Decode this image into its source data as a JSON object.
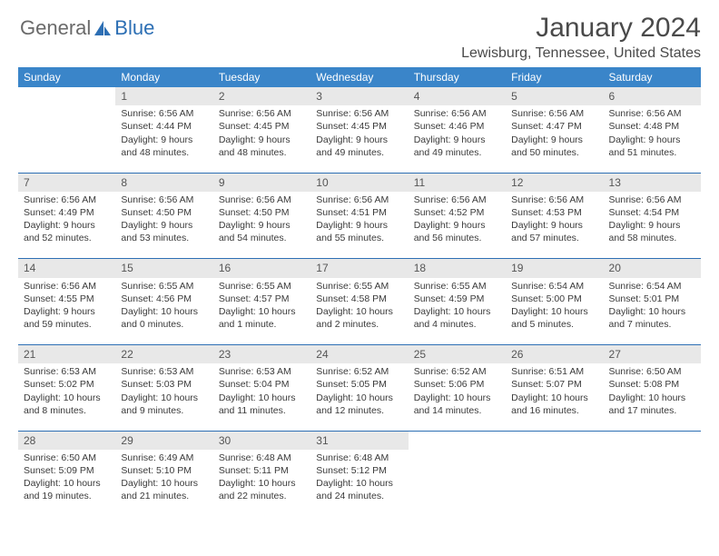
{
  "brand": {
    "part1": "General",
    "part2": "Blue"
  },
  "title": "January 2024",
  "location": "Lewisburg, Tennessee, United States",
  "colors": {
    "header_bg": "#3a85c9",
    "header_fg": "#ffffff",
    "daynum_bg": "#e8e8e8",
    "rule": "#2d6fb4",
    "text": "#3a3a3a"
  },
  "weekdays": [
    "Sunday",
    "Monday",
    "Tuesday",
    "Wednesday",
    "Thursday",
    "Friday",
    "Saturday"
  ],
  "weeks": [
    [
      {
        "n": "",
        "sunrise": "",
        "sunset": "",
        "daylight": ""
      },
      {
        "n": "1",
        "sunrise": "Sunrise: 6:56 AM",
        "sunset": "Sunset: 4:44 PM",
        "daylight": "Daylight: 9 hours and 48 minutes."
      },
      {
        "n": "2",
        "sunrise": "Sunrise: 6:56 AM",
        "sunset": "Sunset: 4:45 PM",
        "daylight": "Daylight: 9 hours and 48 minutes."
      },
      {
        "n": "3",
        "sunrise": "Sunrise: 6:56 AM",
        "sunset": "Sunset: 4:45 PM",
        "daylight": "Daylight: 9 hours and 49 minutes."
      },
      {
        "n": "4",
        "sunrise": "Sunrise: 6:56 AM",
        "sunset": "Sunset: 4:46 PM",
        "daylight": "Daylight: 9 hours and 49 minutes."
      },
      {
        "n": "5",
        "sunrise": "Sunrise: 6:56 AM",
        "sunset": "Sunset: 4:47 PM",
        "daylight": "Daylight: 9 hours and 50 minutes."
      },
      {
        "n": "6",
        "sunrise": "Sunrise: 6:56 AM",
        "sunset": "Sunset: 4:48 PM",
        "daylight": "Daylight: 9 hours and 51 minutes."
      }
    ],
    [
      {
        "n": "7",
        "sunrise": "Sunrise: 6:56 AM",
        "sunset": "Sunset: 4:49 PM",
        "daylight": "Daylight: 9 hours and 52 minutes."
      },
      {
        "n": "8",
        "sunrise": "Sunrise: 6:56 AM",
        "sunset": "Sunset: 4:50 PM",
        "daylight": "Daylight: 9 hours and 53 minutes."
      },
      {
        "n": "9",
        "sunrise": "Sunrise: 6:56 AM",
        "sunset": "Sunset: 4:50 PM",
        "daylight": "Daylight: 9 hours and 54 minutes."
      },
      {
        "n": "10",
        "sunrise": "Sunrise: 6:56 AM",
        "sunset": "Sunset: 4:51 PM",
        "daylight": "Daylight: 9 hours and 55 minutes."
      },
      {
        "n": "11",
        "sunrise": "Sunrise: 6:56 AM",
        "sunset": "Sunset: 4:52 PM",
        "daylight": "Daylight: 9 hours and 56 minutes."
      },
      {
        "n": "12",
        "sunrise": "Sunrise: 6:56 AM",
        "sunset": "Sunset: 4:53 PM",
        "daylight": "Daylight: 9 hours and 57 minutes."
      },
      {
        "n": "13",
        "sunrise": "Sunrise: 6:56 AM",
        "sunset": "Sunset: 4:54 PM",
        "daylight": "Daylight: 9 hours and 58 minutes."
      }
    ],
    [
      {
        "n": "14",
        "sunrise": "Sunrise: 6:56 AM",
        "sunset": "Sunset: 4:55 PM",
        "daylight": "Daylight: 9 hours and 59 minutes."
      },
      {
        "n": "15",
        "sunrise": "Sunrise: 6:55 AM",
        "sunset": "Sunset: 4:56 PM",
        "daylight": "Daylight: 10 hours and 0 minutes."
      },
      {
        "n": "16",
        "sunrise": "Sunrise: 6:55 AM",
        "sunset": "Sunset: 4:57 PM",
        "daylight": "Daylight: 10 hours and 1 minute."
      },
      {
        "n": "17",
        "sunrise": "Sunrise: 6:55 AM",
        "sunset": "Sunset: 4:58 PM",
        "daylight": "Daylight: 10 hours and 2 minutes."
      },
      {
        "n": "18",
        "sunrise": "Sunrise: 6:55 AM",
        "sunset": "Sunset: 4:59 PM",
        "daylight": "Daylight: 10 hours and 4 minutes."
      },
      {
        "n": "19",
        "sunrise": "Sunrise: 6:54 AM",
        "sunset": "Sunset: 5:00 PM",
        "daylight": "Daylight: 10 hours and 5 minutes."
      },
      {
        "n": "20",
        "sunrise": "Sunrise: 6:54 AM",
        "sunset": "Sunset: 5:01 PM",
        "daylight": "Daylight: 10 hours and 7 minutes."
      }
    ],
    [
      {
        "n": "21",
        "sunrise": "Sunrise: 6:53 AM",
        "sunset": "Sunset: 5:02 PM",
        "daylight": "Daylight: 10 hours and 8 minutes."
      },
      {
        "n": "22",
        "sunrise": "Sunrise: 6:53 AM",
        "sunset": "Sunset: 5:03 PM",
        "daylight": "Daylight: 10 hours and 9 minutes."
      },
      {
        "n": "23",
        "sunrise": "Sunrise: 6:53 AM",
        "sunset": "Sunset: 5:04 PM",
        "daylight": "Daylight: 10 hours and 11 minutes."
      },
      {
        "n": "24",
        "sunrise": "Sunrise: 6:52 AM",
        "sunset": "Sunset: 5:05 PM",
        "daylight": "Daylight: 10 hours and 12 minutes."
      },
      {
        "n": "25",
        "sunrise": "Sunrise: 6:52 AM",
        "sunset": "Sunset: 5:06 PM",
        "daylight": "Daylight: 10 hours and 14 minutes."
      },
      {
        "n": "26",
        "sunrise": "Sunrise: 6:51 AM",
        "sunset": "Sunset: 5:07 PM",
        "daylight": "Daylight: 10 hours and 16 minutes."
      },
      {
        "n": "27",
        "sunrise": "Sunrise: 6:50 AM",
        "sunset": "Sunset: 5:08 PM",
        "daylight": "Daylight: 10 hours and 17 minutes."
      }
    ],
    [
      {
        "n": "28",
        "sunrise": "Sunrise: 6:50 AM",
        "sunset": "Sunset: 5:09 PM",
        "daylight": "Daylight: 10 hours and 19 minutes."
      },
      {
        "n": "29",
        "sunrise": "Sunrise: 6:49 AM",
        "sunset": "Sunset: 5:10 PM",
        "daylight": "Daylight: 10 hours and 21 minutes."
      },
      {
        "n": "30",
        "sunrise": "Sunrise: 6:48 AM",
        "sunset": "Sunset: 5:11 PM",
        "daylight": "Daylight: 10 hours and 22 minutes."
      },
      {
        "n": "31",
        "sunrise": "Sunrise: 6:48 AM",
        "sunset": "Sunset: 5:12 PM",
        "daylight": "Daylight: 10 hours and 24 minutes."
      },
      {
        "n": "",
        "sunrise": "",
        "sunset": "",
        "daylight": ""
      },
      {
        "n": "",
        "sunrise": "",
        "sunset": "",
        "daylight": ""
      },
      {
        "n": "",
        "sunrise": "",
        "sunset": "",
        "daylight": ""
      }
    ]
  ]
}
